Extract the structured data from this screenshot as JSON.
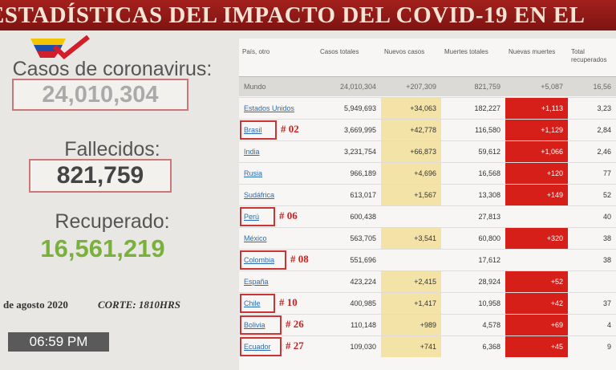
{
  "header": {
    "title": "ESTADÍSTICAS DEL IMPACTO DEL COVID-19 EN EL"
  },
  "summary": {
    "cases_label": "Casos de coronavirus:",
    "cases": "24,010,304",
    "deaths_label": "Fallecidos:",
    "deaths": "821,759",
    "recovered_label": "Recuperado:",
    "recovered": "16,561,219",
    "date": "de agosto 2020",
    "cutoff": "CORTE: 1810HRS",
    "clock": "06:59 PM"
  },
  "table": {
    "columns": [
      "País, otro",
      "Casos totales",
      "Nuevos casos",
      "Muertes totales",
      "Nuevas muertes",
      "Total recuperados"
    ],
    "world": [
      "Mundo",
      "24,010,304",
      "+207,309",
      "821,759",
      "+5,087",
      "16,56"
    ],
    "rows": [
      {
        "cells": [
          "Estados Unidos",
          "5,949,693",
          "+34,063",
          "182,227",
          "+1,113",
          "3,23"
        ]
      },
      {
        "cells": [
          "Brasil",
          "3,669,995",
          "+42,778",
          "116,580",
          "+1,129",
          "2,84"
        ],
        "rank": "# 02"
      },
      {
        "cells": [
          "India",
          "3,231,754",
          "+66,873",
          "59,612",
          "+1,066",
          "2,46"
        ]
      },
      {
        "cells": [
          "Rusia",
          "966,189",
          "+4,696",
          "16,568",
          "+120",
          "77"
        ]
      },
      {
        "cells": [
          "Sudáfrica",
          "613,017",
          "+1,567",
          "13,308",
          "+149",
          "52"
        ]
      },
      {
        "cells": [
          "Perú",
          "600,438",
          null,
          "27,813",
          null,
          "40"
        ],
        "rank": "# 06"
      },
      {
        "cells": [
          "México",
          "563,705",
          "+3,541",
          "60,800",
          "+320",
          "38"
        ]
      },
      {
        "cells": [
          "Colombia",
          "551,696",
          null,
          "17,612",
          null,
          "38"
        ],
        "rank": "# 08"
      },
      {
        "cells": [
          "España",
          "423,224",
          "+2,415",
          "28,924",
          "+52",
          null
        ]
      },
      {
        "cells": [
          "Chile",
          "400,985",
          "+1,417",
          "10,958",
          "+42",
          "37"
        ],
        "rank": "# 10"
      },
      {
        "cells": [
          "Bolivia",
          "110,148",
          "+989",
          "4,578",
          "+69",
          "4"
        ],
        "rank": "# 26"
      },
      {
        "cells": [
          "Ecuador",
          "109,030",
          "+741",
          "6,368",
          "+45",
          "9"
        ],
        "rank": "# 27"
      }
    ]
  }
}
